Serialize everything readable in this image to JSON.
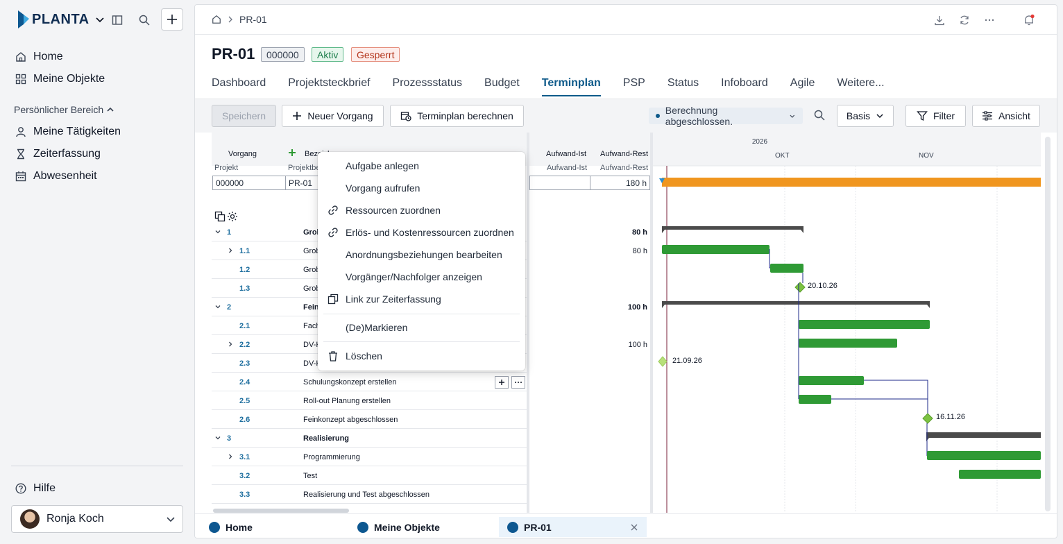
{
  "app": {
    "logo_text": "PLANTA"
  },
  "sidebar": {
    "items": [
      {
        "label": "Home"
      },
      {
        "label": "Meine Objekte"
      }
    ],
    "section_label": "Persönlicher Bereich",
    "section_items": [
      {
        "label": "Meine Tätigkeiten"
      },
      {
        "label": "Zeiterfassung"
      },
      {
        "label": "Abwesenheit"
      }
    ],
    "help_label": "Hilfe",
    "user_name": "Ronja Koch"
  },
  "breadcrumb": {
    "current": "PR-01"
  },
  "project": {
    "title": "PR-01",
    "badges": [
      {
        "label": "000000",
        "bg": "#eef0f3",
        "border": "#9ca3af",
        "color": "#374151"
      },
      {
        "label": "Aktiv",
        "bg": "#e6f6ec",
        "border": "#5fb98a",
        "color": "#1b7d4a"
      },
      {
        "label": "Gesperrt",
        "bg": "#fdecea",
        "border": "#e58f7e",
        "color": "#b3341b"
      }
    ]
  },
  "tabs": [
    "Dashboard",
    "Projektsteckbrief",
    "Prozessstatus",
    "Budget",
    "Terminplan",
    "PSP",
    "Status",
    "Infoboard",
    "Agile",
    "Weitere..."
  ],
  "active_tab": "Terminplan",
  "toolbar": {
    "save_label": "Speichern",
    "new_label": "Neuer Vorgang",
    "calc_label": "Terminplan berechnen",
    "status_label": "Berechnung abgeschlossen.",
    "basis_label": "Basis",
    "filter_label": "Filter",
    "view_label": "Ansicht"
  },
  "grid": {
    "header": {
      "vorgang": "Vorgang",
      "bezeichnung": "Bezeichnung",
      "projekt": "Projekt",
      "projektbez": "Projektbe",
      "aufwand_ist": "Aufwand-Ist",
      "aufwand_rest": "Aufwand-Rest"
    },
    "project_row": {
      "projekt": "000000",
      "bez": "PR-01",
      "rest": "180 h"
    },
    "rows": [
      {
        "num": "1",
        "name": "Grob",
        "group": true,
        "expand": "down",
        "rest": "80 h"
      },
      {
        "num": "1.1",
        "name": "Grob",
        "group": false,
        "expand": "right",
        "rest": "80 h"
      },
      {
        "num": "1.2",
        "name": "Grob",
        "group": false,
        "expand": "",
        "rest": ""
      },
      {
        "num": "1.3",
        "name": "Grob",
        "group": false,
        "expand": "",
        "rest": ""
      },
      {
        "num": "2",
        "name": "Fein",
        "group": true,
        "expand": "down",
        "rest": "100 h"
      },
      {
        "num": "2.1",
        "name": "Fach",
        "group": false,
        "expand": "",
        "rest": ""
      },
      {
        "num": "2.2",
        "name": "DV-K",
        "group": false,
        "expand": "right",
        "rest": "100 h"
      },
      {
        "num": "2.3",
        "name": "DV-K",
        "group": false,
        "expand": "",
        "rest": ""
      },
      {
        "num": "2.4",
        "name": "Schulungskonzept erstellen",
        "group": false,
        "expand": "",
        "rest": ""
      },
      {
        "num": "2.5",
        "name": "Roll-out Planung erstellen",
        "group": false,
        "expand": "",
        "rest": ""
      },
      {
        "num": "2.6",
        "name": "Feinkonzept abgeschlossen",
        "group": false,
        "expand": "",
        "rest": ""
      },
      {
        "num": "3",
        "name": "Realisierung",
        "group": true,
        "expand": "down",
        "rest": ""
      },
      {
        "num": "3.1",
        "name": "Programmierung",
        "group": false,
        "expand": "right",
        "rest": ""
      },
      {
        "num": "3.2",
        "name": "Test",
        "group": false,
        "expand": "",
        "rest": ""
      },
      {
        "num": "3.3",
        "name": "Realisierung und Test abgeschlossen",
        "group": false,
        "expand": "",
        "rest": ""
      }
    ]
  },
  "gantt": {
    "year": "2026",
    "months": [
      "OKT",
      "NOV"
    ],
    "milestones": [
      "20.10.26",
      "21.09.26",
      "16.11.26"
    ]
  },
  "context_menu": {
    "items": [
      "Aufgabe anlegen",
      "Vorgang aufrufen",
      "Ressourcen zuordnen",
      "Erlös- und Kostenressourcen zuordnen",
      "Anordnungsbeziehungen bearbeiten",
      "Vorgänger/Nachfolger anzeigen",
      "Link zur Zeiterfassung"
    ],
    "mark_label": "(De)Markieren",
    "delete_label": "Löschen"
  },
  "bottom_tabs": [
    {
      "label": "Home"
    },
    {
      "label": "Meine Objekte"
    },
    {
      "label": "PR-01"
    }
  ],
  "colors": {
    "accent": "#0e5a8a",
    "bar_green": "#2f9a35",
    "bar_orange": "#f0961f",
    "summary": "#4b4b4b",
    "milestone": "#7cc242"
  }
}
